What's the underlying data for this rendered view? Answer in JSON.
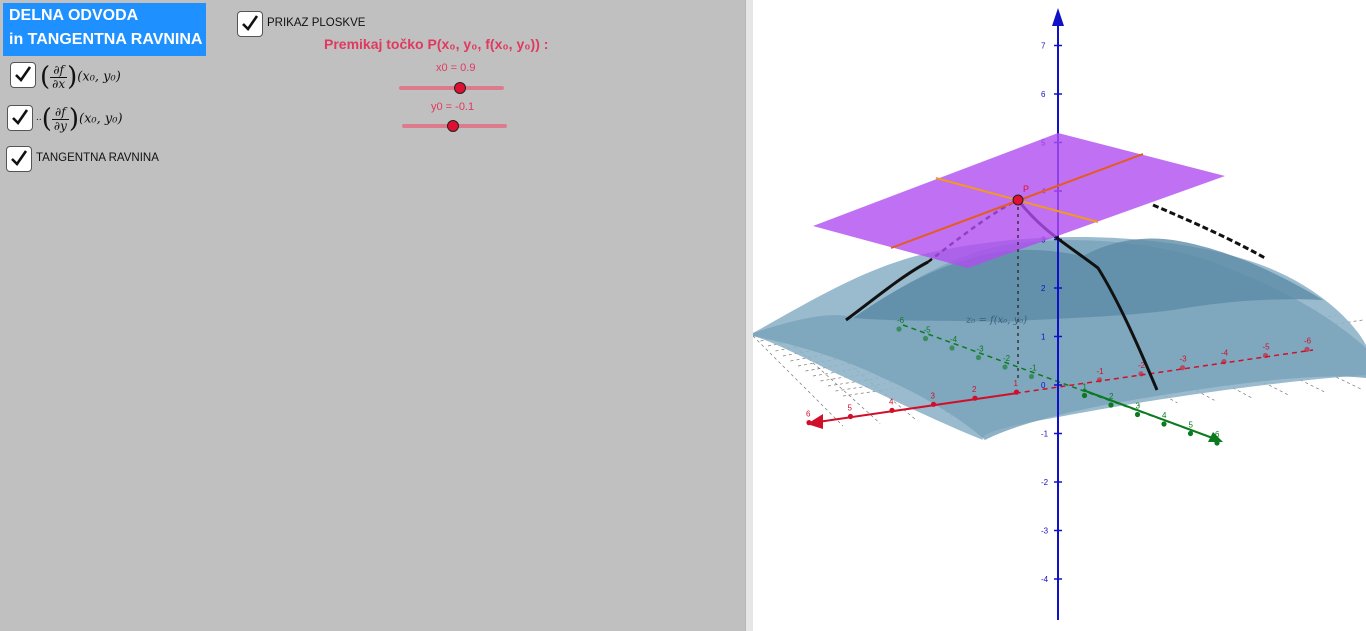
{
  "title": {
    "line1": "DELNA ODVODA",
    "line2": "in TANGENTNA RAVNINA"
  },
  "checkboxes": {
    "dfdx": {
      "checked": true,
      "prefix": "",
      "num": "∂f",
      "den": "∂x",
      "suffix": "(x₀, y₀)"
    },
    "dfdy": {
      "checked": true,
      "prefix": "··",
      "num": "∂f",
      "den": "∂y",
      "suffix": "(x₀, y₀)"
    },
    "tangent": {
      "checked": true,
      "label": "TANGENTNA RAVNINA"
    },
    "surface": {
      "checked": true,
      "label": "PRIKAZ PLOSKVE"
    }
  },
  "instruction": "Premikaj točko P(x₀, y₀, f(x₀, y₀)) :",
  "sliders": {
    "x0": {
      "label": "x0 = 0.9",
      "value": 0.9,
      "min": -2,
      "max": 2
    },
    "y0": {
      "label": "y0 = -0.1",
      "value": -0.1,
      "min": -2,
      "max": 2
    }
  },
  "graph3d": {
    "z_ticks": [
      "7",
      "6",
      "5",
      "4",
      "3",
      "2",
      "1",
      "0",
      "-1",
      "-2",
      "-3",
      "-4"
    ],
    "x_ticks": [
      "-6",
      "-5",
      "-4",
      "-3",
      "-2",
      "-1",
      "1",
      "2",
      "3",
      "4",
      "5",
      "6"
    ],
    "y_ticks": [
      "-6",
      "-5",
      "-4",
      "-3",
      "-2",
      "-1",
      "1",
      "2",
      "3",
      "4",
      "5",
      "6"
    ],
    "surface_label": "z₀ = f(x₀, y₀)",
    "point_label": "P",
    "colors": {
      "x_axis": "#d0102a",
      "y_axis": "#0b7a1e",
      "z_axis": "#1010c8",
      "plane": "#b04cf0",
      "surface": "#6c9ab4",
      "point": "#e01032"
    }
  }
}
